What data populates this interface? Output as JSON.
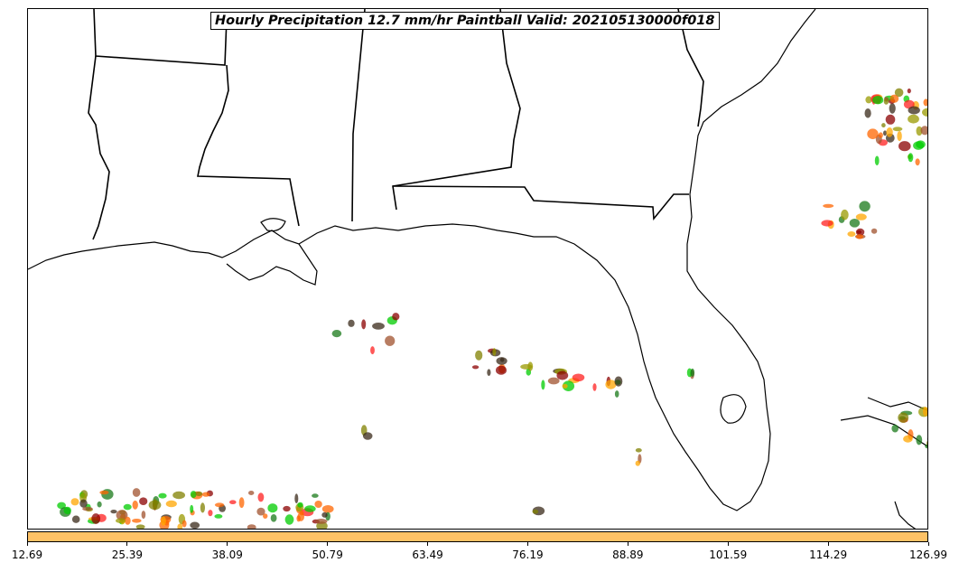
{
  "title": "Hourly Precipitation 12.7 mm/hr Paintball Valid: 202105130000f018",
  "colorbar": {
    "color": "#ffc266",
    "ticks": [
      "12.69",
      "25.39",
      "38.09",
      "50.79",
      "63.49",
      "76.19",
      "88.89",
      "101.59",
      "114.29",
      "126.99"
    ]
  },
  "member_colors": [
    "#00cc00",
    "#1a7a1a",
    "#8b0000",
    "#a0522d",
    "#ff6600",
    "#ffa500",
    "#808000",
    "#9a9a00",
    "#ff2020",
    "#3a2a1a"
  ],
  "map": {
    "features": [
      "coastline",
      "state-borders",
      "precipitation-paintballs"
    ]
  }
}
